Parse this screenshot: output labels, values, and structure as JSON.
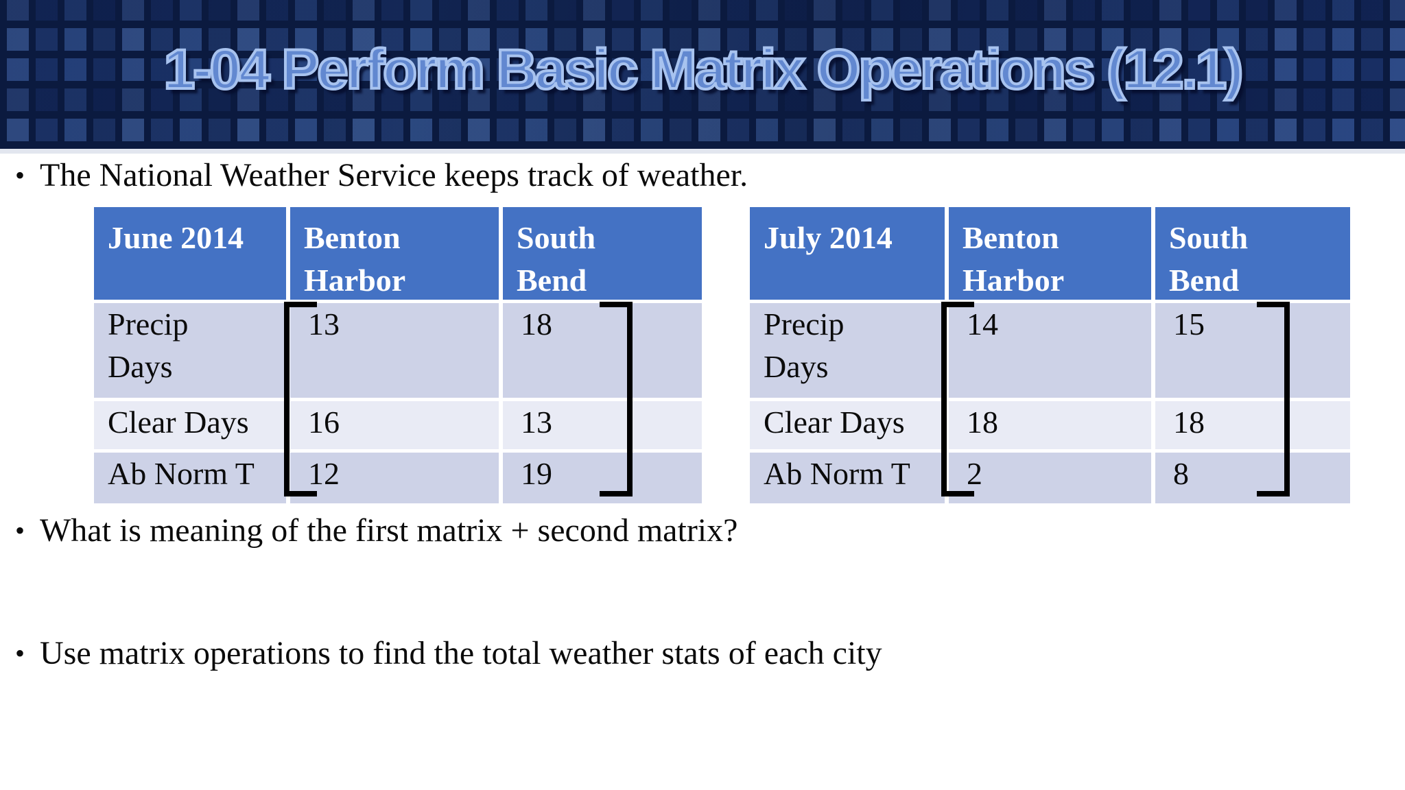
{
  "slide": {
    "title": "1-04 Perform Basic Matrix Operations (12.1)",
    "bullet_char": "•",
    "bullets": [
      "The National Weather Service keeps track of weather.",
      "What is meaning of the first matrix + second matrix?",
      "Use matrix operations to find the total weather stats of each city"
    ]
  },
  "tables": {
    "june": {
      "headers": [
        "June 2014",
        "Benton Harbor",
        "South Bend"
      ],
      "rows": [
        {
          "label": "Precip Days",
          "benton_harbor": "13",
          "south_bend": "18"
        },
        {
          "label": "Clear Days",
          "benton_harbor": "16",
          "south_bend": "13"
        },
        {
          "label": "Ab Norm T",
          "benton_harbor": "12",
          "south_bend": "19"
        }
      ]
    },
    "july": {
      "headers": [
        "July 2014",
        "Benton Harbor",
        "South Bend"
      ],
      "rows": [
        {
          "label": "Precip Days",
          "benton_harbor": "14",
          "south_bend": "15"
        },
        {
          "label": "Clear Days",
          "benton_harbor": "18",
          "south_bend": "18"
        },
        {
          "label": "Ab Norm T",
          "benton_harbor": "2",
          "south_bend": "8"
        }
      ]
    }
  },
  "colors": {
    "table_header_blue": "#4472c4",
    "row_odd": "#cdd2e7",
    "row_even": "#e9ebf5",
    "title_fill": "#6288d0",
    "title_outline": "#a8c3ef",
    "header_background": "#142a5c",
    "bracket": "#000000",
    "body_text": "#0b0b0b"
  }
}
